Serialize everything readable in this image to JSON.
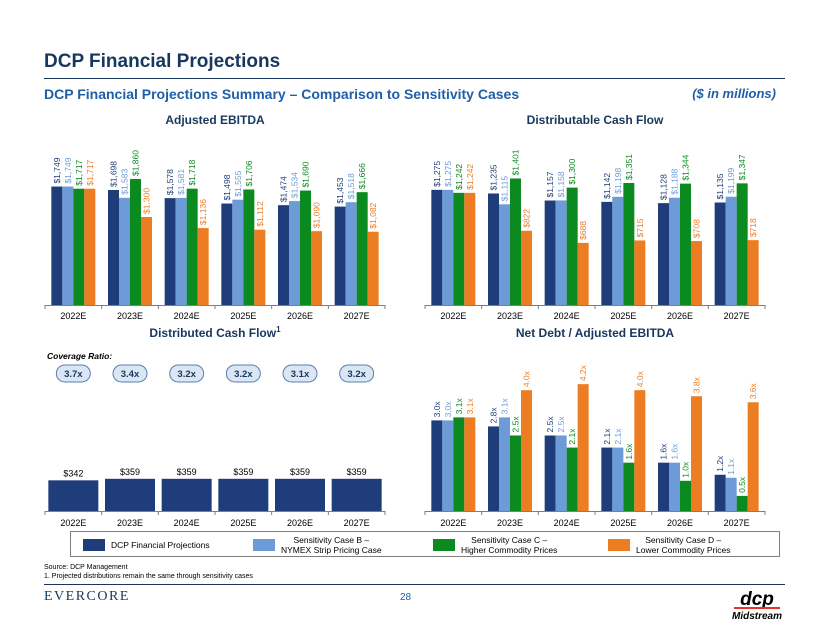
{
  "header": {
    "title": "DCP Financial Projections",
    "subtitle": "DCP Financial Projections Summary – Comparison to Sensitivity Cases",
    "units": "($ in millions)"
  },
  "colors": {
    "title": "#17375e",
    "accent": "#1f5fa8",
    "dcp": "#1f3d7a",
    "case_b": "#6c9bd8",
    "case_c": "#0a8a1f",
    "case_d": "#ed7d22",
    "badge_bg": "#dbe6f4",
    "badge_border": "#5b7fb0",
    "badge_text": "#17375e",
    "axis": "#7f7f7f"
  },
  "legend": [
    {
      "label": "DCP Financial Projections",
      "color_key": "dcp"
    },
    {
      "label": "Sensitivity Case B –\nNYMEX Strip Pricing Case",
      "color_key": "case_b"
    },
    {
      "label": "Sensitivity Case C –\nHigher Commodity Prices",
      "color_key": "case_c"
    },
    {
      "label": "Sensitivity Case D –\nLower Commodity Prices",
      "color_key": "case_d"
    }
  ],
  "chart_data": [
    {
      "type": "bar",
      "title": "Adjusted EBITDA",
      "categories": [
        "2022E",
        "2023E",
        "2024E",
        "2025E",
        "2026E",
        "2027E"
      ],
      "ylim": [
        0,
        2200
      ],
      "series": [
        {
          "name": "DCP Financial Projections",
          "color_key": "dcp",
          "values": [
            1749,
            1698,
            1578,
            1498,
            1474,
            1453
          ],
          "labels": [
            "$1,749",
            "$1,698",
            "$1,578",
            "$1,498",
            "$1,474",
            "$1,453"
          ]
        },
        {
          "name": "Sensitivity Case B – NYMEX Strip Pricing Case",
          "color_key": "case_b",
          "values": [
            1749,
            1583,
            1581,
            1555,
            1534,
            1518
          ],
          "labels": [
            "$1,749",
            "$1,583",
            "$1,581",
            "$1,555",
            "$1,534",
            "$1,518"
          ]
        },
        {
          "name": "Sensitivity Case C – Higher Commodity Prices",
          "color_key": "case_c",
          "values": [
            1717,
            1860,
            1718,
            1706,
            1690,
            1666
          ],
          "labels": [
            "$1,717",
            "$1,860",
            "$1,718",
            "$1,706",
            "$1,690",
            "$1,666"
          ]
        },
        {
          "name": "Sensitivity Case D – Lower Commodity Prices",
          "color_key": "case_d",
          "values": [
            1717,
            1300,
            1136,
            1112,
            1090,
            1082
          ],
          "labels": [
            "$1,717",
            "$1,300",
            "$1,136",
            "$1,112",
            "$1,090",
            "$1,082"
          ]
        }
      ]
    },
    {
      "type": "bar",
      "title": "Distributable Cash Flow",
      "categories": [
        "2022E",
        "2023E",
        "2024E",
        "2025E",
        "2026E",
        "2027E"
      ],
      "ylim": [
        0,
        1650
      ],
      "series": [
        {
          "name": "DCP Financial Projections",
          "color_key": "dcp",
          "values": [
            1275,
            1235,
            1157,
            1142,
            1128,
            1135
          ],
          "labels": [
            "$1,275",
            "$1,235",
            "$1,157",
            "$1,142",
            "$1,128",
            "$1,135"
          ]
        },
        {
          "name": "Sensitivity Case B – NYMEX Strip Pricing Case",
          "color_key": "case_b",
          "values": [
            1275,
            1115,
            1158,
            1198,
            1188,
            1199
          ],
          "labels": [
            "$1,275",
            "$1,115",
            "$1,158",
            "$1,198",
            "$1,188",
            "$1,199"
          ]
        },
        {
          "name": "Sensitivity Case C – Higher Commodity Prices",
          "color_key": "case_c",
          "values": [
            1242,
            1401,
            1300,
            1351,
            1344,
            1347
          ],
          "labels": [
            "$1,242",
            "$1,401",
            "$1,300",
            "$1,351",
            "$1,344",
            "$1,347"
          ]
        },
        {
          "name": "Sensitivity Case D – Lower Commodity Prices",
          "color_key": "case_d",
          "values": [
            1242,
            822,
            688,
            715,
            708,
            718
          ],
          "labels": [
            "$1,242",
            "$822",
            "$688",
            "$715",
            "$708",
            "$718"
          ]
        }
      ]
    },
    {
      "type": "bar",
      "title": "Distributed Cash Flow",
      "title_superscript": "1",
      "categories": [
        "2022E",
        "2023E",
        "2024E",
        "2025E",
        "2026E",
        "2027E"
      ],
      "ylim": [
        0,
        1650
      ],
      "coverage_label": "Coverage Ratio:",
      "coverage": [
        "3.7x",
        "3.4x",
        "3.2x",
        "3.2x",
        "3.1x",
        "3.2x"
      ],
      "series": [
        {
          "name": "DCP Financial Projections",
          "color_key": "dcp",
          "values": [
            342,
            359,
            359,
            359,
            359,
            359
          ],
          "labels": [
            "$342",
            "$359",
            "$359",
            "$359",
            "$359",
            "$359"
          ]
        }
      ]
    },
    {
      "type": "bar",
      "title": "Net Debt / Adjusted EBITDA",
      "categories": [
        "2022E",
        "2023E",
        "2024E",
        "2025E",
        "2026E",
        "2027E"
      ],
      "ylim": [
        0,
        4.9
      ],
      "series": [
        {
          "name": "DCP Financial Projections",
          "color_key": "dcp",
          "values": [
            3.0,
            2.8,
            2.5,
            2.1,
            1.6,
            1.2
          ],
          "labels": [
            "3.0x",
            "2.8x",
            "2.5x",
            "2.1x",
            "1.6x",
            "1.2x"
          ]
        },
        {
          "name": "Sensitivity Case B – NYMEX Strip Pricing Case",
          "color_key": "case_b",
          "values": [
            3.0,
            3.1,
            2.5,
            2.1,
            1.6,
            1.1
          ],
          "labels": [
            "3.0x",
            "3.1x",
            "2.5x",
            "2.1x",
            "1.6x",
            "1.1x"
          ]
        },
        {
          "name": "Sensitivity Case C – Higher Commodity Prices",
          "color_key": "case_c",
          "values": [
            3.1,
            2.5,
            2.1,
            1.6,
            1.0,
            0.5
          ],
          "labels": [
            "3.1x",
            "2.5x",
            "2.1x",
            "1.6x",
            "1.0x",
            "0.5x"
          ]
        },
        {
          "name": "Sensitivity Case D – Lower Commodity Prices",
          "color_key": "case_d",
          "values": [
            3.1,
            4.0,
            4.2,
            4.0,
            3.8,
            3.6
          ],
          "labels": [
            "3.1x",
            "4.0x",
            "4.2x",
            "4.0x",
            "3.8x",
            "3.6x"
          ]
        }
      ]
    }
  ],
  "footer": {
    "source": "Source: DCP Management",
    "footnote": "1.      Projected distributions remain the same through sensitivity cases",
    "brand": "EVERCORE",
    "page": "28",
    "logo_top": "dcp",
    "logo_bottom": "Midstream"
  }
}
